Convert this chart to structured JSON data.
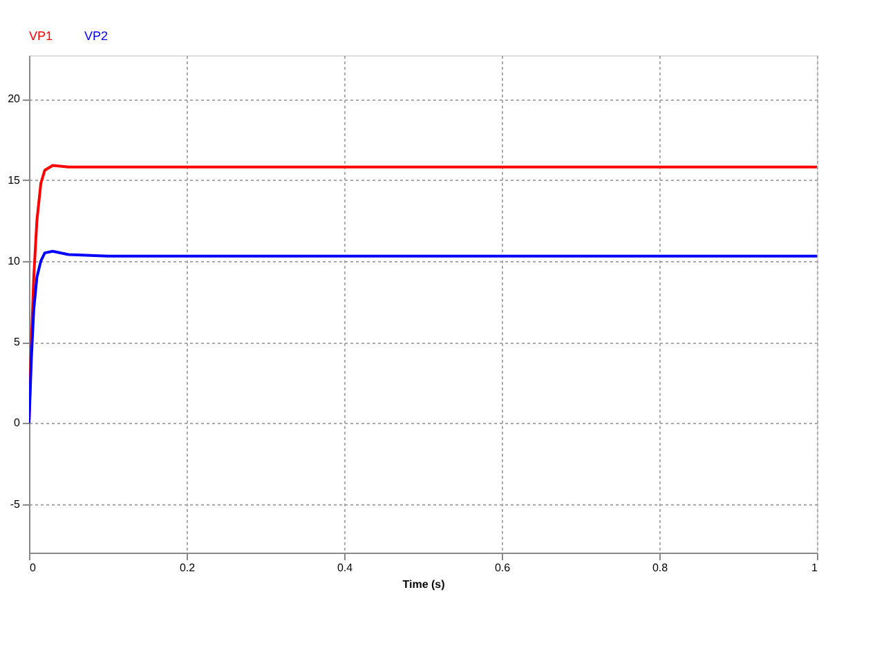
{
  "chart_data": {
    "type": "line",
    "xlabel": "Time (s)",
    "xlim": [
      0,
      1
    ],
    "xticks": [
      0,
      0.2,
      0.4,
      0.6,
      0.8,
      1
    ],
    "ylim": [
      -8,
      22.7
    ],
    "yticks": [
      -5,
      0,
      5,
      10,
      15,
      20
    ],
    "grid": true,
    "legend": "top left",
    "line_style": "solid",
    "series": [
      {
        "name": "VP1",
        "color": "#ff0000",
        "x": [
          0,
          0.003,
          0.006,
          0.01,
          0.015,
          0.02,
          0.03,
          0.05,
          0.1,
          0.3,
          0.6,
          1
        ],
        "values": [
          0,
          5,
          9,
          12.5,
          14.8,
          15.6,
          15.9,
          15.8,
          15.8,
          15.8,
          15.8,
          15.8
        ]
      },
      {
        "name": "VP2",
        "color": "#0000ff",
        "x": [
          0,
          0.003,
          0.006,
          0.01,
          0.015,
          0.02,
          0.03,
          0.05,
          0.1,
          0.3,
          0.6,
          1
        ],
        "values": [
          0,
          4,
          7,
          9,
          10,
          10.5,
          10.6,
          10.4,
          10.3,
          10.3,
          10.3,
          10.3
        ]
      }
    ]
  }
}
